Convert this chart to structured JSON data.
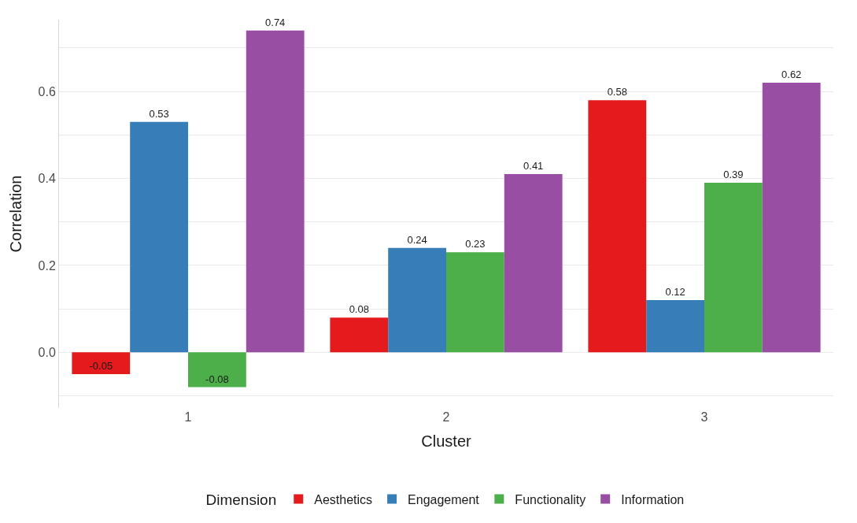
{
  "chart_data": {
    "type": "bar",
    "xlabel": "Cluster",
    "ylabel": "Correlation",
    "legend_title": "Dimension",
    "categories": [
      "1",
      "2",
      "3"
    ],
    "series": [
      {
        "name": "Aesthetics",
        "color": "#e41a1c",
        "values": [
          -0.05,
          0.08,
          0.58
        ]
      },
      {
        "name": "Engagement",
        "color": "#377eb8",
        "values": [
          0.53,
          0.24,
          0.12
        ]
      },
      {
        "name": "Functionality",
        "color": "#4daf4a",
        "values": [
          -0.08,
          0.23,
          0.39
        ]
      },
      {
        "name": "Information",
        "color": "#984ea3",
        "values": [
          0.74,
          0.41,
          0.62
        ]
      }
    ],
    "ylim": [
      -0.128,
      0.765
    ],
    "yticks": [
      {
        "value": -0.1,
        "label": null
      },
      {
        "value": 0.0,
        "label": "0.0"
      },
      {
        "value": 0.1,
        "label": null
      },
      {
        "value": 0.2,
        "label": "0.2"
      },
      {
        "value": 0.3,
        "label": null
      },
      {
        "value": 0.4,
        "label": "0.4"
      },
      {
        "value": 0.5,
        "label": null
      },
      {
        "value": 0.6,
        "label": "0.6"
      },
      {
        "value": 0.7,
        "label": null
      }
    ],
    "data_labels": true,
    "grid": "y",
    "legend": "bottom"
  }
}
